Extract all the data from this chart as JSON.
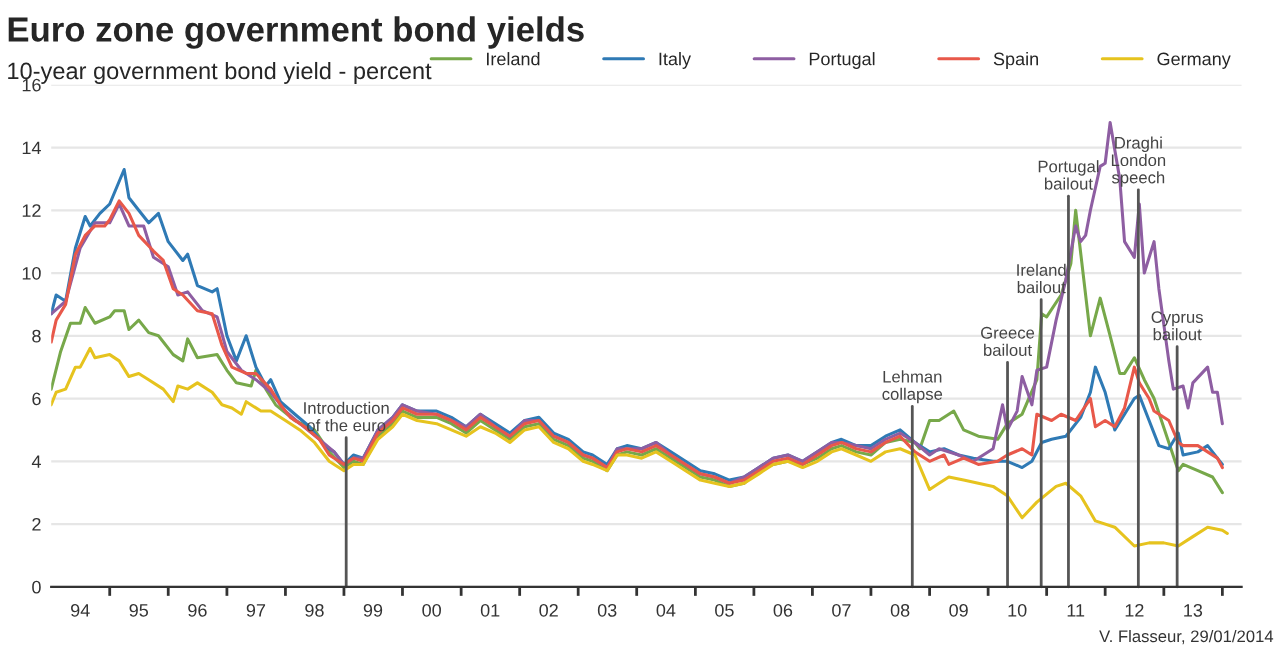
{
  "chart_data": {
    "type": "line",
    "title": "Euro zone government bond yields",
    "subtitle": "10-year government bond yield - percent",
    "annotations": [
      "V. Flasseur, 29/01/2014"
    ],
    "xlim": [
      "1994-01-01",
      "2014-05-01"
    ],
    "xticks": [
      {
        "value": "1994-07-01",
        "label": "94"
      },
      {
        "value": "1995-01-01",
        "label": null
      },
      {
        "value": "1995-07-01",
        "label": "95"
      },
      {
        "value": "1996-01-01",
        "label": null
      },
      {
        "value": "1996-07-01",
        "label": "96"
      },
      {
        "value": "1997-01-01",
        "label": null
      },
      {
        "value": "1997-07-01",
        "label": "97"
      },
      {
        "value": "1998-01-01",
        "label": null
      },
      {
        "value": "1998-07-01",
        "label": "98"
      },
      {
        "value": "1999-01-01",
        "label": null
      },
      {
        "value": "1999-07-01",
        "label": "99"
      },
      {
        "value": "2000-01-01",
        "label": null
      },
      {
        "value": "2000-07-01",
        "label": "00"
      },
      {
        "value": "2001-01-01",
        "label": null
      },
      {
        "value": "2001-07-01",
        "label": "01"
      },
      {
        "value": "2002-01-01",
        "label": null
      },
      {
        "value": "2002-07-01",
        "label": "02"
      },
      {
        "value": "2003-01-01",
        "label": null
      },
      {
        "value": "2003-07-01",
        "label": "03"
      },
      {
        "value": "2004-01-01",
        "label": null
      },
      {
        "value": "2004-07-01",
        "label": "04"
      },
      {
        "value": "2005-01-01",
        "label": null
      },
      {
        "value": "2005-07-01",
        "label": "05"
      },
      {
        "value": "2006-01-01",
        "label": null
      },
      {
        "value": "2006-07-01",
        "label": "06"
      },
      {
        "value": "2007-01-01",
        "label": null
      },
      {
        "value": "2007-07-01",
        "label": "07"
      },
      {
        "value": "2008-01-01",
        "label": null
      },
      {
        "value": "2008-07-01",
        "label": "08"
      },
      {
        "value": "2009-01-01",
        "label": null
      },
      {
        "value": "2009-07-01",
        "label": "09"
      },
      {
        "value": "2010-01-01",
        "label": null
      },
      {
        "value": "2010-07-01",
        "label": "10"
      },
      {
        "value": "2011-01-01",
        "label": null
      },
      {
        "value": "2011-07-01",
        "label": "11"
      },
      {
        "value": "2012-01-01",
        "label": null
      },
      {
        "value": "2012-07-01",
        "label": "12"
      },
      {
        "value": "2013-01-01",
        "label": null
      },
      {
        "value": "2013-07-01",
        "label": "13"
      },
      {
        "value": "2014-01-01",
        "label": null
      }
    ],
    "ylim": [
      0,
      16
    ],
    "yticks": [
      0,
      2,
      4,
      6,
      8,
      10,
      12,
      14,
      16
    ],
    "grid": "y",
    "legend": "top right",
    "ref_lines": [
      {
        "axis": "x",
        "value": "1999-01-15",
        "label": "Introduction\nof the euro",
        "color": "#555555"
      },
      {
        "axis": "x",
        "value": "2008-09-15",
        "label": "Lehman\ncollapse",
        "color": "#555555"
      },
      {
        "axis": "x",
        "value": "2010-05-02",
        "label": "Greece\nbailout",
        "color": "#555555"
      },
      {
        "axis": "x",
        "value": "2010-11-28",
        "label": "Ireland\nbailout",
        "color": "#555555"
      },
      {
        "axis": "x",
        "value": "2011-05-17",
        "label": "Portugal\nbailout",
        "color": "#555555"
      },
      {
        "axis": "x",
        "value": "2012-07-26",
        "label": "Draghi\nLondon\nspeech",
        "color": "#555555"
      },
      {
        "axis": "x",
        "value": "2013-03-25",
        "label": "Cyprus\nbailout",
        "color": "#555555"
      }
    ],
    "series": [
      {
        "name": "Ireland",
        "color": "#77a84a",
        "x": [
          "1994-01",
          "1994-03",
          "1994-05",
          "1994-07",
          "1994-08",
          "1994-10",
          "1995-01",
          "1995-02",
          "1995-04",
          "1995-05",
          "1995-07",
          "1995-09",
          "1995-11",
          "1996-02",
          "1996-04",
          "1996-05",
          "1996-07",
          "1996-11",
          "1997-01",
          "1997-03",
          "1997-06",
          "1997-07",
          "1997-09",
          "1997-11",
          "1998-03",
          "1998-07",
          "1998-10",
          "1999-01",
          "1999-03",
          "1999-05",
          "1999-08",
          "1999-11",
          "2000-01",
          "2000-04",
          "2000-08",
          "2000-11",
          "2001-02",
          "2001-05",
          "2001-08",
          "2001-11",
          "2002-02",
          "2002-05",
          "2002-08",
          "2002-11",
          "2003-02",
          "2003-04",
          "2003-07",
          "2003-09",
          "2003-11",
          "2004-02",
          "2004-05",
          "2004-08",
          "2004-11",
          "2005-02",
          "2005-05",
          "2005-08",
          "2005-11",
          "2006-02",
          "2006-05",
          "2006-08",
          "2006-11",
          "2007-02",
          "2007-05",
          "2007-07",
          "2007-10",
          "2008-01",
          "2008-04",
          "2008-07",
          "2008-10",
          "2008-11",
          "2009-01",
          "2009-03",
          "2009-06",
          "2009-08",
          "2009-11",
          "2010-03",
          "2010-05",
          "2010-08",
          "2010-11",
          "2010-12",
          "2011-01",
          "2011-04",
          "2011-06",
          "2011-07",
          "2011-10",
          "2011-12",
          "2012-02",
          "2012-04",
          "2012-05",
          "2012-07",
          "2012-09",
          "2012-11",
          "2013-02",
          "2013-04",
          "2013-05",
          "2013-08",
          "2013-11",
          "2014-01"
        ],
        "values": [
          6.3,
          7.5,
          8.4,
          8.4,
          8.9,
          8.4,
          8.6,
          8.8,
          8.8,
          8.2,
          8.5,
          8.1,
          8.0,
          7.4,
          7.2,
          7.9,
          7.3,
          7.4,
          6.9,
          6.5,
          6.4,
          6.9,
          6.3,
          5.8,
          5.3,
          5.0,
          4.3,
          3.8,
          4.0,
          3.9,
          4.8,
          5.2,
          5.6,
          5.4,
          5.4,
          5.2,
          4.9,
          5.3,
          5.0,
          4.7,
          5.1,
          5.2,
          4.7,
          4.5,
          4.1,
          4.0,
          3.7,
          4.2,
          4.3,
          4.2,
          4.4,
          4.1,
          3.8,
          3.5,
          3.4,
          3.2,
          3.3,
          3.7,
          3.9,
          4.0,
          3.9,
          4.1,
          4.4,
          4.5,
          4.3,
          4.2,
          4.6,
          4.7,
          4.6,
          4.4,
          5.3,
          5.3,
          5.6,
          5.0,
          4.8,
          4.7,
          5.2,
          5.5,
          6.6,
          8.7,
          8.6,
          9.3,
          10.3,
          12.0,
          8.0,
          9.2,
          8.0,
          6.8,
          6.8,
          7.3,
          6.6,
          6.0,
          4.6,
          3.7,
          3.9,
          3.7,
          3.5,
          3.0
        ]
      },
      {
        "name": "Italy",
        "color": "#2f7ab5",
        "x": [
          "1994-01",
          "1994-02",
          "1994-04",
          "1994-06",
          "1994-08",
          "1994-09",
          "1994-11",
          "1995-01",
          "1995-04",
          "1995-05",
          "1995-07",
          "1995-09",
          "1995-11",
          "1996-01",
          "1996-04",
          "1996-05",
          "1996-07",
          "1996-10",
          "1996-11",
          "1997-01",
          "1997-03",
          "1997-05",
          "1997-07",
          "1997-09",
          "1997-10",
          "1997-12",
          "1998-03",
          "1998-06",
          "1998-09",
          "1998-11",
          "1999-01",
          "1999-03",
          "1999-05",
          "1999-08",
          "1999-11",
          "2000-01",
          "2000-04",
          "2000-08",
          "2000-11",
          "2001-02",
          "2001-05",
          "2001-08",
          "2001-11",
          "2002-02",
          "2002-05",
          "2002-08",
          "2002-11",
          "2003-02",
          "2003-04",
          "2003-07",
          "2003-09",
          "2003-11",
          "2004-02",
          "2004-05",
          "2004-08",
          "2004-11",
          "2005-02",
          "2005-05",
          "2005-08",
          "2005-11",
          "2006-02",
          "2006-05",
          "2006-08",
          "2006-11",
          "2007-02",
          "2007-05",
          "2007-07",
          "2007-10",
          "2008-01",
          "2008-04",
          "2008-07",
          "2008-10",
          "2009-01",
          "2009-04",
          "2009-07",
          "2009-10",
          "2010-02",
          "2010-05",
          "2010-08",
          "2010-10",
          "2010-12",
          "2011-02",
          "2011-05",
          "2011-08",
          "2011-10",
          "2011-11",
          "2012-01",
          "2012-03",
          "2012-05",
          "2012-07",
          "2012-08",
          "2012-10",
          "2012-12",
          "2013-02",
          "2013-04",
          "2013-05",
          "2013-08",
          "2013-10",
          "2013-12",
          "2014-01"
        ],
        "values": [
          8.7,
          9.3,
          9.1,
          10.8,
          11.8,
          11.5,
          11.9,
          12.2,
          13.3,
          12.4,
          12.0,
          11.6,
          11.9,
          11.0,
          10.4,
          10.6,
          9.6,
          9.4,
          9.5,
          8.0,
          7.2,
          8.0,
          7.0,
          6.4,
          6.6,
          5.9,
          5.5,
          5.1,
          4.5,
          4.3,
          3.9,
          4.2,
          4.1,
          5.0,
          5.4,
          5.8,
          5.6,
          5.6,
          5.4,
          5.1,
          5.5,
          5.2,
          4.9,
          5.3,
          5.4,
          4.9,
          4.7,
          4.3,
          4.2,
          3.9,
          4.4,
          4.5,
          4.4,
          4.6,
          4.3,
          4.0,
          3.7,
          3.6,
          3.4,
          3.5,
          3.8,
          4.1,
          4.2,
          4.0,
          4.3,
          4.6,
          4.7,
          4.5,
          4.5,
          4.8,
          5.0,
          4.6,
          4.3,
          4.4,
          4.2,
          4.1,
          4.0,
          4.0,
          3.8,
          4.0,
          4.6,
          4.7,
          4.8,
          5.4,
          6.2,
          7.0,
          6.2,
          5.0,
          5.5,
          6.0,
          6.1,
          5.3,
          4.5,
          4.4,
          4.9,
          4.2,
          4.3,
          4.5,
          4.1,
          3.9
        ]
      },
      {
        "name": "Portugal",
        "color": "#8e5ea2",
        "x": [
          "1994-01",
          "1994-04",
          "1994-07",
          "1994-10",
          "1995-01",
          "1995-03",
          "1995-05",
          "1995-08",
          "1995-10",
          "1996-01",
          "1996-03",
          "1996-05",
          "1996-08",
          "1996-11",
          "1997-01",
          "1997-04",
          "1997-07",
          "1997-10",
          "1998-01",
          "1998-04",
          "1998-08",
          "1998-11",
          "1999-01",
          "1999-03",
          "1999-05",
          "1999-08",
          "1999-11",
          "2000-01",
          "2000-04",
          "2000-08",
          "2000-11",
          "2001-02",
          "2001-05",
          "2001-08",
          "2001-11",
          "2002-02",
          "2002-05",
          "2002-08",
          "2002-11",
          "2003-02",
          "2003-04",
          "2003-07",
          "2003-09",
          "2003-11",
          "2004-02",
          "2004-05",
          "2004-08",
          "2004-11",
          "2005-02",
          "2005-05",
          "2005-08",
          "2005-11",
          "2006-02",
          "2006-05",
          "2006-08",
          "2006-11",
          "2007-02",
          "2007-05",
          "2007-07",
          "2007-10",
          "2008-01",
          "2008-04",
          "2008-07",
          "2008-10",
          "2009-01",
          "2009-03",
          "2009-07",
          "2009-10",
          "2010-02",
          "2010-04",
          "2010-05",
          "2010-07",
          "2010-08",
          "2010-10",
          "2010-11",
          "2011-01",
          "2011-03",
          "2011-05",
          "2011-07",
          "2011-08",
          "2011-09",
          "2011-10",
          "2011-12",
          "2012-01",
          "2012-02",
          "2012-04",
          "2012-05",
          "2012-07",
          "2012-08",
          "2012-09",
          "2012-11",
          "2012-12",
          "2013-02",
          "2013-03",
          "2013-05",
          "2013-06",
          "2013-07",
          "2013-10",
          "2013-11",
          "2013-12",
          "2014-01"
        ],
        "values": [
          8.7,
          9.1,
          10.8,
          11.6,
          11.6,
          12.2,
          11.5,
          11.5,
          10.5,
          10.2,
          9.3,
          9.4,
          8.8,
          8.6,
          7.5,
          6.9,
          6.6,
          6.2,
          5.6,
          5.2,
          4.7,
          4.3,
          3.9,
          4.1,
          4.1,
          5.0,
          5.4,
          5.8,
          5.6,
          5.5,
          5.3,
          5.1,
          5.5,
          5.1,
          4.8,
          5.3,
          5.3,
          4.8,
          4.6,
          4.2,
          4.1,
          3.8,
          4.4,
          4.4,
          4.4,
          4.6,
          4.2,
          3.9,
          3.6,
          3.5,
          3.3,
          3.5,
          3.8,
          4.1,
          4.2,
          4.0,
          4.3,
          4.6,
          4.6,
          4.5,
          4.4,
          4.7,
          4.9,
          4.6,
          4.2,
          4.4,
          4.2,
          4.0,
          4.4,
          5.8,
          5.0,
          5.6,
          6.7,
          5.8,
          6.9,
          7.0,
          8.5,
          9.8,
          11.5,
          11.0,
          11.2,
          12.0,
          13.4,
          13.5,
          14.8,
          13.0,
          11.0,
          10.5,
          12.2,
          10.0,
          11.0,
          9.5,
          7.2,
          6.3,
          6.4,
          5.7,
          6.5,
          7.0,
          6.2,
          6.2,
          5.2
        ]
      },
      {
        "name": "Spain",
        "color": "#e8584a",
        "x": [
          "1994-01",
          "1994-02",
          "1994-04",
          "1994-06",
          "1994-08",
          "1994-10",
          "1994-12",
          "1995-01",
          "1995-03",
          "1995-05",
          "1995-07",
          "1995-10",
          "1995-12",
          "1996-02",
          "1996-04",
          "1996-07",
          "1996-10",
          "1996-12",
          "1997-02",
          "1997-05",
          "1997-07",
          "1997-10",
          "1997-12",
          "1998-02",
          "1998-05",
          "1998-08",
          "1998-10",
          "1999-01",
          "1999-03",
          "1999-05",
          "1999-08",
          "1999-11",
          "2000-01",
          "2000-04",
          "2000-08",
          "2000-11",
          "2001-02",
          "2001-05",
          "2001-08",
          "2001-11",
          "2002-02",
          "2002-05",
          "2002-08",
          "2002-11",
          "2003-02",
          "2003-04",
          "2003-07",
          "2003-09",
          "2003-11",
          "2004-02",
          "2004-05",
          "2004-08",
          "2004-11",
          "2005-02",
          "2005-05",
          "2005-08",
          "2005-11",
          "2006-02",
          "2006-05",
          "2006-08",
          "2006-11",
          "2007-02",
          "2007-05",
          "2007-07",
          "2007-10",
          "2008-01",
          "2008-04",
          "2008-07",
          "2008-10",
          "2009-01",
          "2009-04",
          "2009-05",
          "2009-08",
          "2009-11",
          "2010-03",
          "2010-05",
          "2010-08",
          "2010-10",
          "2010-11",
          "2011-02",
          "2011-04",
          "2011-07",
          "2011-10",
          "2011-11",
          "2012-01",
          "2012-03",
          "2012-05",
          "2012-07",
          "2012-08",
          "2012-10",
          "2012-11",
          "2013-02",
          "2013-04",
          "2013-05",
          "2013-08",
          "2013-10",
          "2013-12",
          "2014-01"
        ],
        "values": [
          7.8,
          8.5,
          9.0,
          10.6,
          11.2,
          11.5,
          11.5,
          11.7,
          12.3,
          11.9,
          11.2,
          10.7,
          10.4,
          9.5,
          9.3,
          8.8,
          8.7,
          7.7,
          7.0,
          6.8,
          6.8,
          6.3,
          5.8,
          5.4,
          5.1,
          4.7,
          4.2,
          3.9,
          4.1,
          4.0,
          4.9,
          5.3,
          5.7,
          5.5,
          5.5,
          5.3,
          5.0,
          5.4,
          5.1,
          4.8,
          5.2,
          5.3,
          4.8,
          4.6,
          4.2,
          4.1,
          3.8,
          4.3,
          4.4,
          4.3,
          4.5,
          4.2,
          3.9,
          3.6,
          3.5,
          3.3,
          3.4,
          3.7,
          4.0,
          4.1,
          3.9,
          4.2,
          4.5,
          4.6,
          4.4,
          4.3,
          4.6,
          4.8,
          4.3,
          4.0,
          4.2,
          3.9,
          4.1,
          3.9,
          4.0,
          4.2,
          4.4,
          4.2,
          5.5,
          5.3,
          5.5,
          5.3,
          6.0,
          5.1,
          5.3,
          5.1,
          5.7,
          7.0,
          6.5,
          6.0,
          5.6,
          5.3,
          4.6,
          4.5,
          4.5,
          4.3,
          4.1,
          3.8
        ]
      },
      {
        "name": "Germany",
        "color": "#e6c31e",
        "x": [
          "1994-01",
          "1994-02",
          "1994-04",
          "1994-06",
          "1994-07",
          "1994-09",
          "1994-10",
          "1995-01",
          "1995-03",
          "1995-05",
          "1995-07",
          "1995-09",
          "1995-12",
          "1996-02",
          "1996-03",
          "1996-05",
          "1996-07",
          "1996-10",
          "1996-12",
          "1997-02",
          "1997-04",
          "1997-05",
          "1997-08",
          "1997-10",
          "1998-01",
          "1998-04",
          "1998-07",
          "1998-10",
          "1998-11",
          "1999-01",
          "1999-03",
          "1999-05",
          "1999-08",
          "1999-11",
          "2000-01",
          "2000-04",
          "2000-08",
          "2000-11",
          "2001-02",
          "2001-05",
          "2001-08",
          "2001-11",
          "2002-02",
          "2002-05",
          "2002-08",
          "2002-11",
          "2003-02",
          "2003-04",
          "2003-07",
          "2003-09",
          "2003-11",
          "2004-02",
          "2004-05",
          "2004-08",
          "2004-11",
          "2005-02",
          "2005-05",
          "2005-08",
          "2005-11",
          "2006-02",
          "2006-05",
          "2006-08",
          "2006-11",
          "2007-02",
          "2007-05",
          "2007-07",
          "2007-10",
          "2008-01",
          "2008-04",
          "2008-07",
          "2008-10",
          "2009-01",
          "2009-03",
          "2009-05",
          "2009-08",
          "2009-11",
          "2010-02",
          "2010-05",
          "2010-08",
          "2010-11",
          "2011-03",
          "2011-05",
          "2011-08",
          "2011-11",
          "2012-03",
          "2012-07",
          "2012-10",
          "2013-01",
          "2013-04",
          "2013-07",
          "2013-10",
          "2014-01",
          "2014-02"
        ],
        "values": [
          5.8,
          6.2,
          6.3,
          7.0,
          7.0,
          7.6,
          7.3,
          7.4,
          7.2,
          6.7,
          6.8,
          6.6,
          6.3,
          5.9,
          6.4,
          6.3,
          6.5,
          6.2,
          5.8,
          5.7,
          5.5,
          5.9,
          5.6,
          5.6,
          5.3,
          5.0,
          4.6,
          4.0,
          3.9,
          3.7,
          3.9,
          3.9,
          4.7,
          5.1,
          5.5,
          5.3,
          5.2,
          5.0,
          4.8,
          5.1,
          4.9,
          4.6,
          5.0,
          5.1,
          4.6,
          4.4,
          4.0,
          3.9,
          3.7,
          4.2,
          4.2,
          4.1,
          4.3,
          4.0,
          3.7,
          3.4,
          3.3,
          3.2,
          3.3,
          3.6,
          3.9,
          4.0,
          3.8,
          4.0,
          4.3,
          4.4,
          4.2,
          4.0,
          4.3,
          4.4,
          4.2,
          3.1,
          3.3,
          3.5,
          3.4,
          3.3,
          3.2,
          2.9,
          2.2,
          2.7,
          3.2,
          3.3,
          2.9,
          2.1,
          1.9,
          1.3,
          1.4,
          1.4,
          1.3,
          1.6,
          1.9,
          1.8,
          1.7
        ]
      }
    ]
  }
}
